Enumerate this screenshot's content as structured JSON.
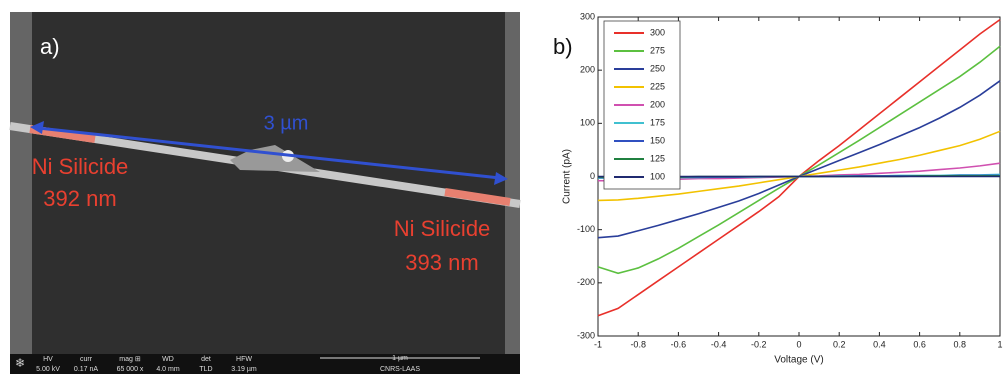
{
  "panel_a": {
    "label": "a)",
    "length": "3 µm",
    "left_label": [
      "Ni Silicide",
      "392 nm"
    ],
    "right_label": [
      "Ni Silicide",
      "393 nm"
    ],
    "info_bar": {
      "fields": [
        {
          "name": "HV",
          "value": "5.00 kV"
        },
        {
          "name": "curr",
          "value": "0.17 nA"
        },
        {
          "name": "mag ⊞",
          "value": "65 000 x"
        },
        {
          "name": "WD",
          "value": "4.0 mm"
        },
        {
          "name": "det",
          "value": "TLD"
        },
        {
          "name": "HFW",
          "value": "3.19 µm"
        }
      ],
      "scale_bar": "1 µm",
      "institution": "CNRS-LAAS"
    }
  },
  "chart_data": {
    "type": "line",
    "panel_label": "b)",
    "x_label": "Voltage (V)",
    "y_label": "Current (pA)",
    "x": [
      -1,
      -0.9,
      -0.8,
      -0.7,
      -0.6,
      -0.5,
      -0.4,
      -0.3,
      -0.2,
      -0.1,
      0,
      0.1,
      0.2,
      0.3,
      0.4,
      0.5,
      0.6,
      0.7,
      0.8,
      0.9,
      1
    ],
    "series": [
      {
        "name": "300",
        "color": "#e8302a",
        "values": [
          -262,
          -248,
          -222,
          -196,
          -170,
          -144,
          -118,
          -92,
          -66,
          -38,
          0,
          30,
          58,
          88,
          118,
          148,
          178,
          208,
          238,
          268,
          295
        ]
      },
      {
        "name": "275",
        "color": "#5cc040",
        "values": [
          -170,
          -182,
          -172,
          -155,
          -135,
          -113,
          -91,
          -68,
          -45,
          -22,
          0,
          22,
          45,
          68,
          92,
          116,
          140,
          164,
          188,
          215,
          245
        ]
      },
      {
        "name": "250",
        "color": "#2a3e9a",
        "values": [
          -115,
          -112,
          -102,
          -92,
          -81,
          -70,
          -58,
          -46,
          -32,
          -16,
          0,
          15,
          30,
          45,
          60,
          76,
          92,
          110,
          130,
          153,
          180
        ]
      },
      {
        "name": "225",
        "color": "#f2c200",
        "values": [
          -45,
          -44,
          -41,
          -37,
          -33,
          -28,
          -23,
          -18,
          -12,
          -6,
          0,
          6,
          12,
          18,
          25,
          32,
          40,
          49,
          58,
          70,
          85
        ]
      },
      {
        "name": "200",
        "color": "#d050b0",
        "values": [
          -8,
          -8,
          -7,
          -6,
          -5,
          -4,
          -4,
          -3,
          -2,
          -1,
          0,
          1,
          3,
          4,
          6,
          8,
          10,
          13,
          16,
          20,
          25
        ]
      },
      {
        "name": "175",
        "color": "#40c0d0",
        "values": [
          -3,
          -3,
          -3,
          -2,
          -2,
          -2,
          -1,
          -1,
          -1,
          0,
          0,
          0,
          1,
          1,
          1,
          2,
          2,
          2,
          3,
          3,
          4
        ]
      },
      {
        "name": "150",
        "color": "#3050c0",
        "values": [
          -2,
          -2,
          -2,
          -1,
          -1,
          -1,
          -1,
          -1,
          0,
          0,
          0,
          0,
          0,
          1,
          1,
          1,
          1,
          1,
          2,
          2,
          2
        ]
      },
      {
        "name": "125",
        "color": "#208040",
        "values": [
          -1,
          -1,
          -1,
          -1,
          -1,
          0,
          0,
          0,
          0,
          0,
          0,
          0,
          0,
          0,
          0,
          0,
          1,
          1,
          1,
          1,
          1
        ]
      },
      {
        "name": "100",
        "color": "#202a70",
        "values": [
          0,
          0,
          0,
          0,
          0,
          0,
          0,
          0,
          0,
          0,
          0,
          0,
          0,
          0,
          0,
          0,
          0,
          0,
          0,
          0,
          0
        ]
      }
    ],
    "xlim": [
      -1,
      1
    ],
    "xticks": [
      -1,
      -0.8,
      -0.6,
      -0.4,
      -0.2,
      0,
      0.2,
      0.4,
      0.6,
      0.8,
      1
    ],
    "ylim": [
      -300,
      300
    ],
    "yticks": [
      -300,
      -200,
      -100,
      0,
      100,
      200,
      300
    ],
    "grid": false,
    "legend": "upper-left"
  }
}
